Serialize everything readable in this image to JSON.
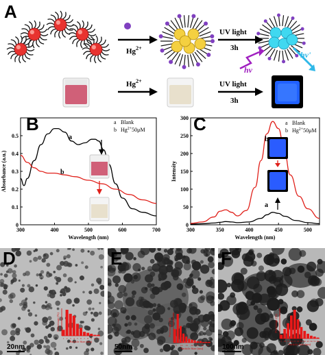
{
  "panel_a": {
    "letter": "A",
    "reagent": "Hg",
    "reagent_sup": "2+",
    "uv_label": "UV light",
    "time_label": "3h",
    "hv_in": "hv",
    "hv_out": "hv'",
    "row2_reagent": "Hg",
    "row2_reagent_sup": "2+",
    "row2_uv_label": "UV light",
    "row2_time_label": "3h",
    "colors": {
      "gold_np": "#e8332f",
      "hg_dot": "#8040c0",
      "bright_np": "#f4d040",
      "fluor": "#40d8f0",
      "vial_pink": "#d06078",
      "vial_pale": "#e8e0cc",
      "vial_blue": "#2060ff"
    }
  },
  "panel_b": {
    "letter": "B",
    "legend_a": "Blank",
    "legend_b_prefix": "Hg",
    "legend_b_sup": "2+",
    "legend_b_suffix": "50μM",
    "legend_a_key": "a",
    "legend_b_key": "b",
    "curve_a_label": "a",
    "curve_b_label": "b",
    "colors": {
      "a": "#000000",
      "b": "#e0201a"
    }
  },
  "panel_c": {
    "letter": "C",
    "legend_a": "Blank",
    "legend_b_prefix": "Hg",
    "legend_b_sup": "2+",
    "legend_b_suffix": "50μM",
    "legend_a_key": "a",
    "legend_b_key": "b",
    "curve_a_label": "a",
    "curve_b_label": "b",
    "colors": {
      "a": "#000000",
      "b": "#e0201a"
    }
  },
  "chart_data": [
    {
      "type": "line",
      "panel": "B",
      "xlabel": "Wavelength (nm)",
      "ylabel": "Absorbance (a.u.)",
      "xlim": [
        300,
        700
      ],
      "ylim": [
        0.0,
        0.6
      ],
      "xticks": [
        300,
        400,
        500,
        600,
        700
      ],
      "yticks": [
        0.0,
        0.1,
        0.2,
        0.3,
        0.4,
        0.5
      ],
      "series": [
        {
          "name": "a",
          "x": [
            300,
            310,
            320,
            340,
            360,
            380,
            400,
            410,
            430,
            450,
            470,
            490,
            510,
            520,
            530,
            545,
            560,
            580,
            600,
            630,
            660,
            700
          ],
          "y": [
            0.26,
            0.22,
            0.26,
            0.36,
            0.45,
            0.51,
            0.54,
            0.54,
            0.52,
            0.47,
            0.45,
            0.46,
            0.48,
            0.48,
            0.47,
            0.42,
            0.34,
            0.23,
            0.15,
            0.09,
            0.07,
            0.05
          ]
        },
        {
          "name": "b",
          "x": [
            300,
            320,
            340,
            360,
            380,
            400,
            430,
            460,
            500,
            540,
            580,
            620,
            660,
            700
          ],
          "y": [
            0.39,
            0.35,
            0.32,
            0.3,
            0.29,
            0.29,
            0.28,
            0.27,
            0.25,
            0.23,
            0.2,
            0.17,
            0.14,
            0.12
          ]
        }
      ]
    },
    {
      "type": "line",
      "panel": "C",
      "xlabel": "Wavelength (nm)",
      "ylabel": "Intensity",
      "xlim": [
        300,
        520
      ],
      "ylim": [
        0,
        300
      ],
      "xticks": [
        300,
        350,
        400,
        450,
        500
      ],
      "yticks": [
        0,
        50,
        100,
        150,
        200,
        250,
        300
      ],
      "series": [
        {
          "name": "a",
          "x": [
            300,
            320,
            340,
            350,
            360,
            370,
            380,
            400,
            420,
            430,
            440,
            450,
            460,
            480,
            500,
            520
          ],
          "y": [
            2,
            3,
            5,
            7,
            9,
            8,
            6,
            8,
            18,
            28,
            35,
            32,
            24,
            12,
            6,
            3
          ]
        },
        {
          "name": "b",
          "x": [
            300,
            320,
            340,
            350,
            360,
            370,
            380,
            395,
            410,
            420,
            430,
            440,
            450,
            460,
            470,
            485,
            500,
            520
          ],
          "y": [
            4,
            8,
            22,
            38,
            42,
            35,
            25,
            40,
            105,
            180,
            255,
            290,
            270,
            205,
            140,
            80,
            45,
            18
          ]
        }
      ]
    },
    {
      "type": "bar",
      "panel": "D",
      "xlabel": "Particle Size (nm)",
      "ylabel": "Percentage (%)",
      "categories": [
        "1",
        "2",
        "3",
        "4",
        "5",
        "6",
        "7",
        "8",
        "9",
        "10",
        "11"
      ],
      "values": [
        6,
        26,
        22,
        20,
        12,
        8,
        4,
        3,
        2,
        1,
        1
      ]
    },
    {
      "type": "bar",
      "panel": "E",
      "xlabel": "Particle Size (nm)",
      "ylabel": "Percentage (%)",
      "xticklabels": [
        "5",
        "10",
        "15",
        "20",
        "25",
        "30",
        "35"
      ],
      "categories": [
        "2",
        "4",
        "6",
        "8",
        "10",
        "12",
        "14",
        "16",
        "18",
        "20",
        "22",
        "24",
        "26"
      ],
      "values": [
        18,
        38,
        22,
        12,
        8,
        5,
        4,
        3,
        2,
        2,
        1,
        1,
        1
      ]
    },
    {
      "type": "bar",
      "panel": "F",
      "xlabel": "Particle Size (nm)",
      "ylabel": "Percentage (%)",
      "categories": [
        "5",
        "10",
        "15",
        "20",
        "25",
        "30",
        "35",
        "40",
        "45",
        "50",
        "55",
        "60"
      ],
      "values": [
        4,
        10,
        16,
        24,
        30,
        20,
        12,
        8,
        5,
        3,
        2,
        1
      ]
    }
  ],
  "tem": {
    "d": {
      "letter": "D",
      "scale": "20nm"
    },
    "e": {
      "letter": "E",
      "scale": "50nm"
    },
    "f": {
      "letter": "F",
      "scale": "100nm"
    }
  }
}
